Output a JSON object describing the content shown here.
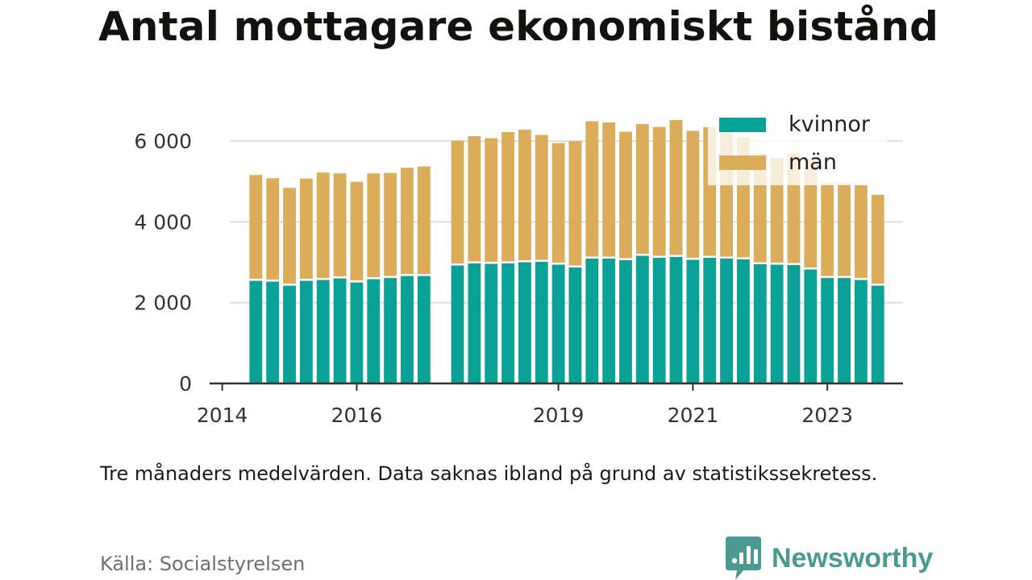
{
  "title": "Antal mottagare ekonomiskt bistånd",
  "note": "Tre månaders medelvärden. Data saknas ibland på grund av statistikssekretess.",
  "source": "Källa: Socialstyrelsen",
  "brand": {
    "name": "Newsworthy",
    "icon": "newsworthy-logo-icon",
    "color": "#4a9a92"
  },
  "colors": {
    "kvinnor": "#0aa296",
    "man": "#dbad5a",
    "grid": "#dedede",
    "axis": "#333333"
  },
  "chart_data": {
    "type": "bar",
    "stacked": true,
    "xlabel": "",
    "ylabel": "",
    "ylim": [
      0,
      6500
    ],
    "y_ticks": [
      {
        "value": 0,
        "label": "0"
      },
      {
        "value": 2000,
        "label": "2 000"
      },
      {
        "value": 4000,
        "label": "4 000"
      },
      {
        "value": 6000,
        "label": "6 000"
      }
    ],
    "x_ticks": [
      {
        "quarter": 0,
        "label": "2014"
      },
      {
        "quarter": 8,
        "label": "2016"
      },
      {
        "quarter": 20,
        "label": "2019"
      },
      {
        "quarter": 28,
        "label": "2021"
      },
      {
        "quarter": 36,
        "label": "2023"
      }
    ],
    "x_range_quarters": [
      -0.75,
      40.5
    ],
    "legend": {
      "position": "top-right"
    },
    "quarters": [
      2,
      3,
      4,
      5,
      6,
      7,
      8,
      9,
      10,
      11,
      12,
      14,
      15,
      16,
      17,
      18,
      19,
      20,
      21,
      22,
      23,
      24,
      25,
      26,
      27,
      28,
      29,
      30,
      31,
      32,
      33,
      34,
      35,
      36,
      37,
      38,
      39
    ],
    "series": [
      {
        "name": "kvinnor",
        "values": [
          2540,
          2520,
          2420,
          2540,
          2560,
          2600,
          2500,
          2580,
          2610,
          2660,
          2660,
          2920,
          2970,
          2960,
          2970,
          3000,
          3010,
          2940,
          2870,
          3090,
          3090,
          3050,
          3160,
          3110,
          3130,
          3060,
          3110,
          3090,
          3070,
          2950,
          2940,
          2930,
          2820,
          2610,
          2610,
          2560,
          2420
        ]
      },
      {
        "name": "män",
        "values": [
          2620,
          2560,
          2420,
          2530,
          2660,
          2600,
          2490,
          2620,
          2600,
          2680,
          2710,
          3090,
          3150,
          3110,
          3250,
          3280,
          3140,
          3010,
          3130,
          3400,
          3370,
          3180,
          3260,
          3240,
          3390,
          3190,
          3230,
          3190,
          3020,
          2730,
          2640,
          2780,
          2740,
          2350,
          2350,
          2350,
          2250
        ]
      }
    ]
  }
}
